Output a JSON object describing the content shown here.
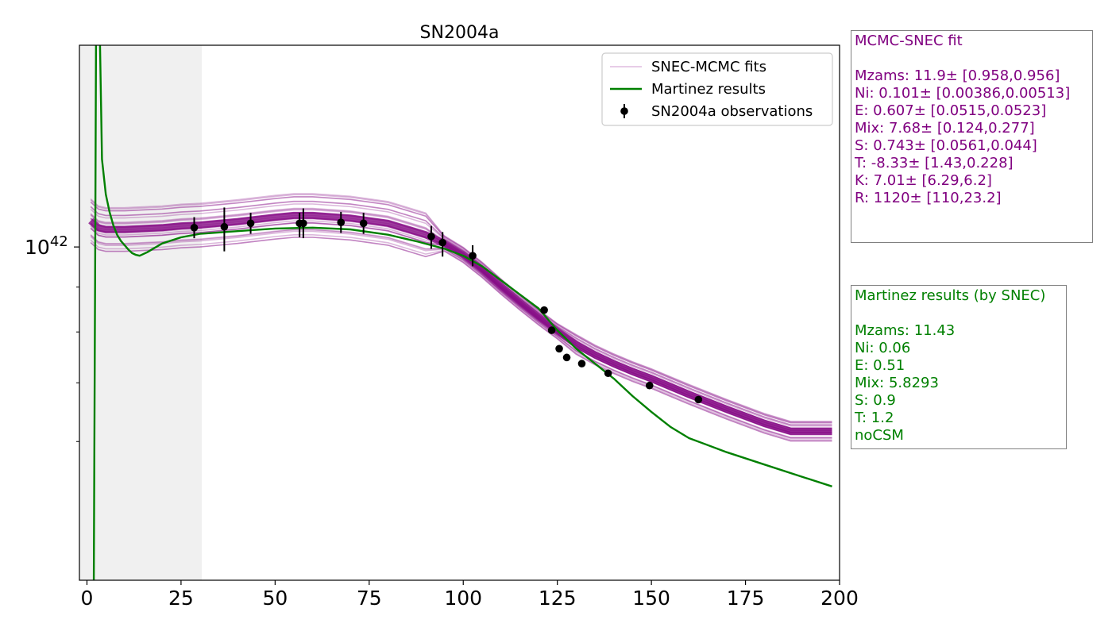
{
  "chart_data": {
    "type": "line",
    "title": "SN2004a",
    "xlabel": "",
    "ylabel": "",
    "x_ticks": [
      "0",
      "25",
      "50",
      "75",
      "100",
      "125",
      "150",
      "175",
      "200"
    ],
    "y_tick_label": {
      "base": "10",
      "exp": "42"
    },
    "xlim": [
      -2,
      200
    ],
    "ylim_log10": [
      41.62,
      42.23
    ],
    "y_scale": "log",
    "shaded_region": {
      "x": [
        -2,
        30.5
      ],
      "color": "#f0f0f0"
    },
    "legend": {
      "placement": "top-right",
      "entries": [
        {
          "label": "SNEC-MCMC fits",
          "style": "line",
          "color": "#c98fc9"
        },
        {
          "label": "Martinez results",
          "style": "line",
          "color": "#008000"
        },
        {
          "label": "SN2004a observations",
          "style": "errorbar-point",
          "color": "#000000"
        }
      ]
    },
    "series": [
      {
        "name": "Martinez results",
        "color": "#008000",
        "x": [
          1.8,
          2.2,
          2.6,
          3.2,
          4,
          5,
          6,
          7,
          8,
          9,
          10,
          11,
          12,
          13,
          14,
          16,
          18,
          20,
          25,
          30,
          40,
          50,
          60,
          70,
          80,
          88,
          95,
          100,
          105,
          110,
          115,
          120,
          125,
          130,
          135,
          140,
          145,
          150,
          155,
          160,
          170,
          180,
          190,
          198
        ],
        "y_log10": [
          41.6,
          42.0,
          42.45,
          42.3,
          42.1,
          42.06,
          42.04,
          42.025,
          42.014,
          42.007,
          42.002,
          41.997,
          41.993,
          41.991,
          41.99,
          41.994,
          41.999,
          42.004,
          42.011,
          42.015,
          42.018,
          42.021,
          42.022,
          42.02,
          42.014,
          42.006,
          41.998,
          41.99,
          41.978,
          41.962,
          41.946,
          41.93,
          41.905,
          41.884,
          41.867,
          41.85,
          41.83,
          41.812,
          41.795,
          41.782,
          41.766,
          41.752,
          41.738,
          41.727
        ]
      },
      {
        "name": "SNEC-MCMC fits",
        "color": "#800080",
        "x": [
          1,
          3,
          5,
          10,
          15,
          20,
          25,
          30,
          40,
          50,
          55,
          60,
          70,
          80,
          90,
          95,
          100,
          105,
          110,
          115,
          120,
          125,
          130,
          135,
          140,
          145,
          150,
          155,
          160,
          170,
          180,
          187,
          198
        ],
        "y_log10": [
          42.03,
          42.022,
          42.02,
          42.02,
          42.021,
          42.022,
          42.024,
          42.025,
          42.029,
          42.034,
          42.036,
          42.036,
          42.033,
          42.027,
          42.014,
          42.004,
          41.991,
          41.974,
          41.955,
          41.937,
          41.92,
          41.904,
          41.889,
          41.877,
          41.867,
          41.858,
          41.85,
          41.841,
          41.832,
          41.815,
          41.799,
          41.79,
          41.79
        ]
      }
    ],
    "observations": {
      "name": "SN2004a observations",
      "color": "#000000",
      "x": [
        28.5,
        36.5,
        43.5,
        56.5,
        57.5,
        67.5,
        73.5,
        91.5,
        94.5,
        102.5,
        121.5,
        123.5,
        125.5,
        127.5,
        131.5,
        138.5,
        149.5,
        162.5
      ],
      "y_log10": [
        42.022,
        42.023,
        42.027,
        42.027,
        42.027,
        42.028,
        42.027,
        42.012,
        42.005,
        41.99,
        41.928,
        41.905,
        41.884,
        41.874,
        41.867,
        41.856,
        41.842,
        41.826
      ],
      "err_up": [
        0.012,
        0.022,
        0.012,
        0.012,
        0.017,
        0.012,
        0.012,
        0.012,
        0.012,
        0.012,
        0,
        0,
        0,
        0,
        0,
        0,
        0,
        0
      ],
      "err_down": [
        0.012,
        0.028,
        0.012,
        0.016,
        0.017,
        0.012,
        0.012,
        0.014,
        0.016,
        0.012,
        0,
        0,
        0,
        0,
        0,
        0,
        0,
        0
      ]
    }
  },
  "mcmc_box": {
    "title": "MCMC-SNEC fit",
    "color": "#800080",
    "lines": [
      "Mzams: 11.9± [0.958,0.956]",
      "Ni: 0.101± [0.00386,0.00513]",
      "E: 0.607± [0.0515,0.0523]",
      "Mix: 7.68± [0.124,0.277]",
      "S: 0.743± [0.0561,0.044]",
      "T: -8.33± [1.43,0.228]",
      "K: 7.01± [6.29,6.2]",
      "R: 1120± [110,23.2]"
    ]
  },
  "martinez_box": {
    "title": "Martinez results (by SNEC)",
    "color": "#008000",
    "lines": [
      "Mzams: 11.43",
      "Ni: 0.06",
      "E: 0.51",
      "Mix: 5.8293",
      "S: 0.9",
      "T: 1.2",
      "noCSM"
    ]
  }
}
